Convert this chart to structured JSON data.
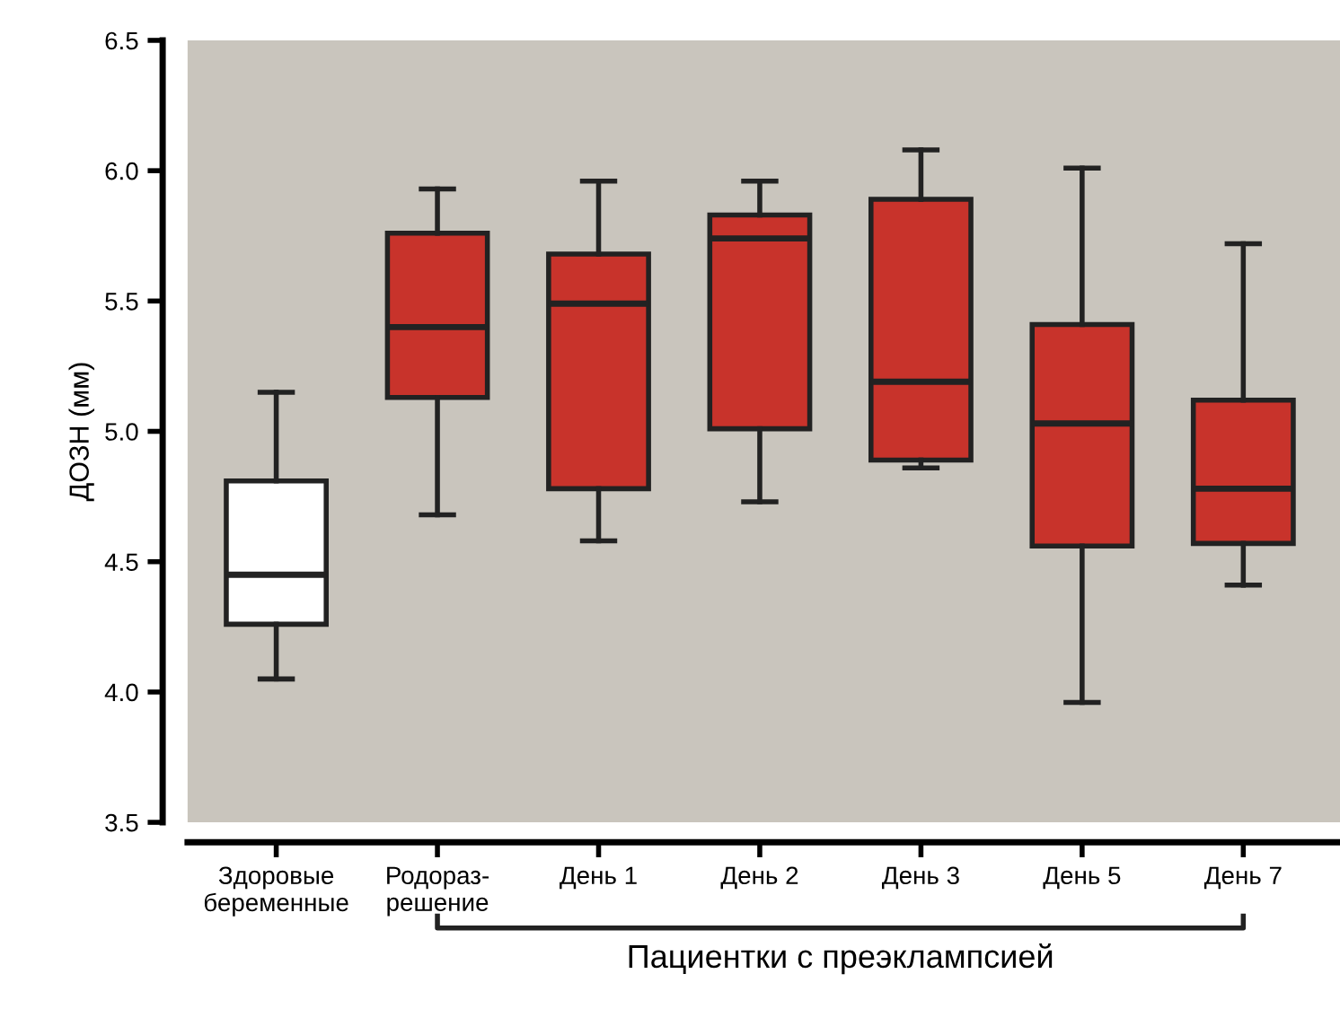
{
  "chart_data": {
    "type": "box",
    "ylabel": "ДОЗН (мм)",
    "categories": [
      "Здоровые\nбеременные",
      "Родораз-\nрешение",
      "День 1",
      "День 2",
      "День 3",
      "День 5",
      "День 7"
    ],
    "boxes": [
      {
        "low": 4.05,
        "q1": 4.26,
        "median": 4.45,
        "q3": 4.81,
        "high": 5.15
      },
      {
        "low": 4.68,
        "q1": 5.13,
        "median": 5.4,
        "q3": 5.76,
        "high": 5.93
      },
      {
        "low": 4.58,
        "q1": 4.78,
        "median": 5.49,
        "q3": 5.68,
        "high": 5.96
      },
      {
        "low": 4.73,
        "q1": 5.01,
        "median": 5.74,
        "q3": 5.83,
        "high": 5.96
      },
      {
        "low": 4.86,
        "q1": 4.89,
        "median": 5.19,
        "q3": 5.89,
        "high": 6.08
      },
      {
        "low": 3.96,
        "q1": 4.56,
        "median": 5.03,
        "q3": 5.41,
        "high": 6.01
      },
      {
        "low": 4.41,
        "q1": 4.57,
        "median": 4.78,
        "q3": 5.12,
        "high": 5.72
      }
    ],
    "colors": [
      "#ffffff",
      "#c8332b",
      "#c8332b",
      "#c8332b",
      "#c8332b",
      "#c8332b",
      "#c8332b"
    ],
    "ylim": [
      3.5,
      6.5
    ],
    "yticks": [
      3.5,
      {
        "value": 4,
        "label": "4.0"
      },
      4.5,
      {
        "value": 5,
        "label": "5.0"
      },
      5.5,
      {
        "value": 6,
        "label": "6.0"
      },
      6.5
    ],
    "grid": false,
    "annotations": [
      "Пациентки с преэклампсией"
    ]
  }
}
